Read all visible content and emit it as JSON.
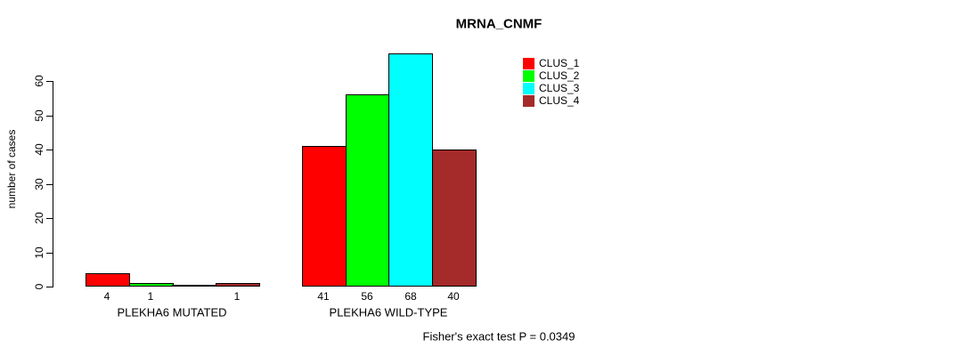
{
  "chart_data": {
    "type": "bar",
    "title": "MRNA_CNMF",
    "ylabel": "number of cases",
    "yticks": [
      0,
      10,
      20,
      30,
      40,
      50,
      60
    ],
    "ylim": [
      0,
      60
    ],
    "grid": false,
    "legend_position": "top-right",
    "categories": [
      "PLEKHA6 MUTATED",
      "PLEKHA6 WILD-TYPE"
    ],
    "series": [
      {
        "name": "CLUS_1",
        "color": "#FF0000",
        "values": [
          4,
          41
        ]
      },
      {
        "name": "CLUS_2",
        "color": "#00FF00",
        "values": [
          1,
          56
        ]
      },
      {
        "name": "CLUS_3",
        "color": "#00FFFF",
        "values": [
          0,
          68
        ]
      },
      {
        "name": "CLUS_4",
        "color": "#A52A2A",
        "values": [
          1,
          40
        ]
      }
    ],
    "bar_labels": [
      [
        "4",
        "1",
        "",
        "1"
      ],
      [
        "41",
        "56",
        "68",
        "40"
      ]
    ],
    "annotation": "Fisher's exact test P = 0.0349"
  }
}
